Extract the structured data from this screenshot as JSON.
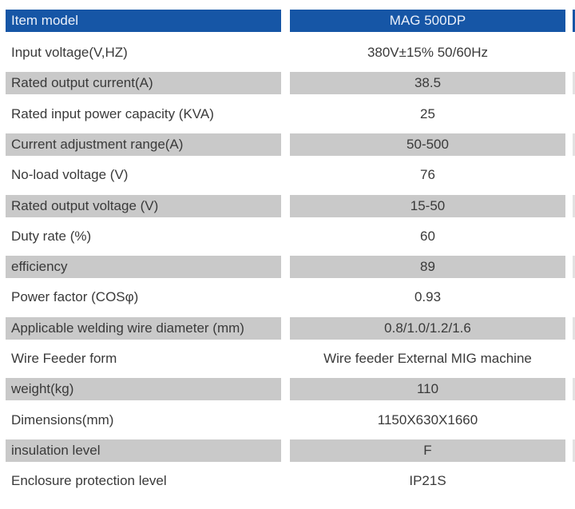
{
  "header": {
    "label": "Item model",
    "value": "MAG  500DP"
  },
  "rows": [
    {
      "label": "Input voltage(V,HZ)",
      "value": "380V±15%  50/60Hz"
    },
    {
      "label": "Rated output current(A)",
      "value": "38.5"
    },
    {
      "label": "Rated input power capacity (KVA)",
      "value": "25"
    },
    {
      "label": "Current adjustment range(A)",
      "value": "50-500"
    },
    {
      "label": "No-load voltage (V)",
      "value": "76"
    },
    {
      "label": "Rated output voltage (V)",
      "value": "15-50"
    },
    {
      "label": "Duty rate (%)",
      "value": "60"
    },
    {
      "label": "efficiency",
      "value": "89"
    },
    {
      "label": "Power factor (COSφ)",
      "value": "0.93"
    },
    {
      "label": "Applicable welding wire diameter (mm)",
      "value": "0.8/1.0/1.2/1.6"
    },
    {
      "label": "Wire Feeder form",
      "value": "Wire feeder External MIG machine"
    },
    {
      "label": "weight(kg)",
      "value": "110"
    },
    {
      "label": "Dimensions(mm)",
      "value": "1150X630X1660"
    },
    {
      "label": "insulation level",
      "value": "F"
    },
    {
      "label": "Enclosure protection level",
      "value": "IP21S"
    }
  ],
  "colors": {
    "header": "#1656a6",
    "stripe": "#c9c9c9",
    "text": "#3a3a3a"
  }
}
